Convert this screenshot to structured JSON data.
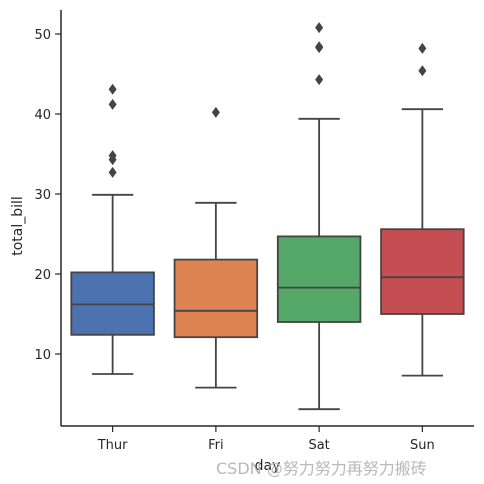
{
  "chart_data": {
    "type": "box",
    "xlabel": "day",
    "ylabel": "total_bill",
    "ylim": [
      1,
      53
    ],
    "yticks": [
      10,
      20,
      30,
      40,
      50
    ],
    "grid": false,
    "categories": [
      "Thur",
      "Fri",
      "Sat",
      "Sun"
    ],
    "boxes": [
      {
        "name": "Thur",
        "color": "#4C72B0",
        "whisker_low": 7.5,
        "q1": 12.4,
        "median": 16.2,
        "q3": 20.2,
        "whisker_high": 29.9,
        "outliers": [
          32.7,
          34.3,
          34.8,
          41.2,
          43.1
        ]
      },
      {
        "name": "Fri",
        "color": "#DD8452",
        "whisker_low": 5.8,
        "q1": 12.1,
        "median": 15.4,
        "q3": 21.8,
        "whisker_high": 28.9,
        "outliers": [
          40.2
        ]
      },
      {
        "name": "Sat",
        "color": "#55A868",
        "whisker_low": 3.1,
        "q1": 14.0,
        "median": 18.3,
        "q3": 24.7,
        "whisker_high": 39.4,
        "outliers": [
          44.3,
          48.3,
          48.4,
          50.8
        ]
      },
      {
        "name": "Sun",
        "color": "#C44E52",
        "whisker_low": 7.3,
        "q1": 15.0,
        "median": 19.6,
        "q3": 25.6,
        "whisker_high": 40.6,
        "outliers": [
          45.4,
          48.2
        ]
      }
    ]
  },
  "watermark": "CSDN @努力努力再努力搬砖"
}
